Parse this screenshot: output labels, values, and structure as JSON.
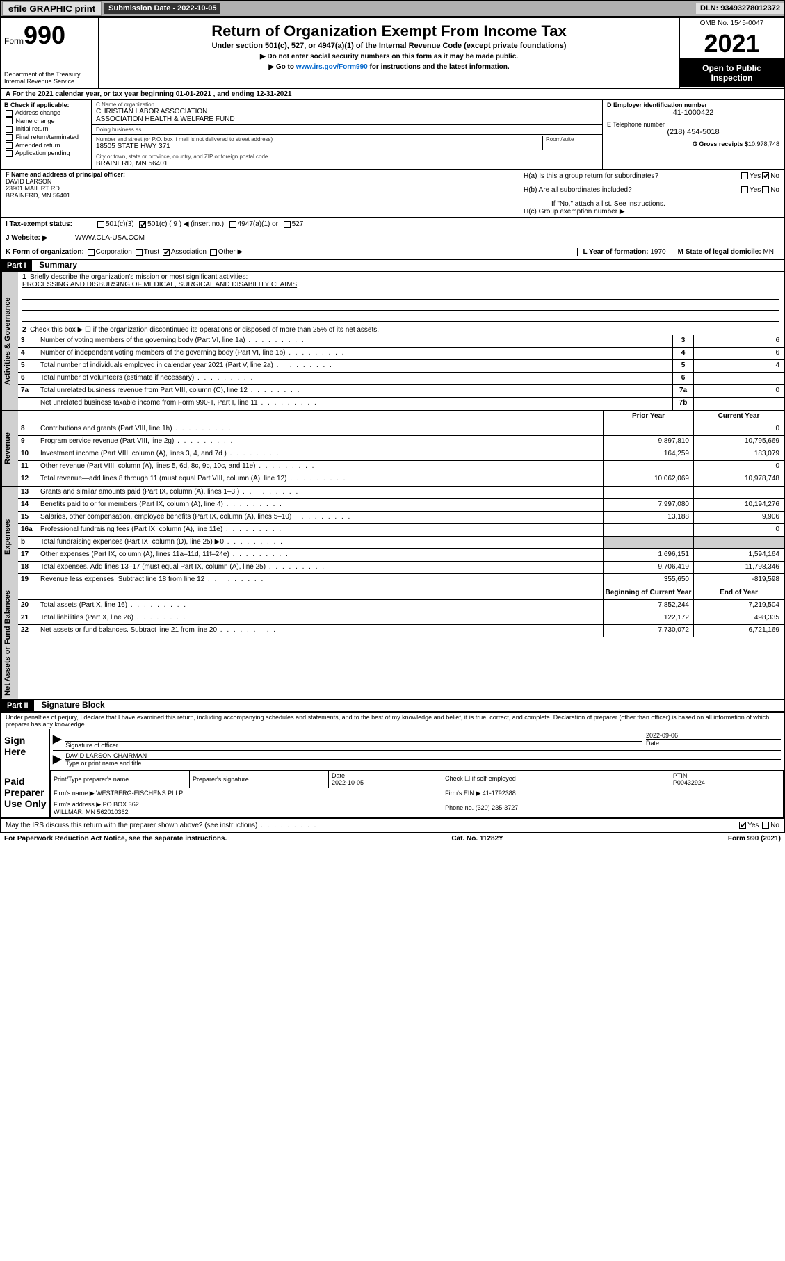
{
  "topbar": {
    "efile": "efile GRAPHIC print",
    "sub_lbl": "Submission Date - 2022-10-05",
    "dln": "DLN: 93493278012372"
  },
  "header": {
    "form_word": "Form",
    "form_num": "990",
    "dept": "Department of the Treasury\nInternal Revenue Service",
    "title": "Return of Organization Exempt From Income Tax",
    "sub": "Under section 501(c), 527, or 4947(a)(1) of the Internal Revenue Code (except private foundations)",
    "sub2a": "▶ Do not enter social security numbers on this form as it may be made public.",
    "sub2b_pre": "▶ Go to ",
    "sub2b_link": "www.irs.gov/Form990",
    "sub2b_post": " for instructions and the latest information.",
    "omb": "OMB No. 1545-0047",
    "year": "2021",
    "open": "Open to Public Inspection"
  },
  "row_a": "A For the 2021 calendar year, or tax year beginning 01-01-2021   , and ending 12-31-2021",
  "col_b": {
    "hdr": "B Check if applicable:",
    "items": [
      "Address change",
      "Name change",
      "Initial return",
      "Final return/terminated",
      "Amended return",
      "Application pending"
    ]
  },
  "col_c": {
    "name_lbl": "C Name of organization",
    "name": "CHRISTIAN LABOR ASSOCIATION\nASSOCIATION HEALTH & WELFARE FUND",
    "dba_lbl": "Doing business as",
    "dba": "",
    "addr_lbl": "Number and street (or P.O. box if mail is not delivered to street address)",
    "addr": "18505 STATE HWY 371",
    "room_lbl": "Room/suite",
    "city_lbl": "City or town, state or province, country, and ZIP or foreign postal code",
    "city": "BRAINERD, MN  56401"
  },
  "col_d": {
    "ein_lbl": "D Employer identification number",
    "ein": "41-1000422",
    "tel_lbl": "E Telephone number",
    "tel": "(218) 454-5018",
    "gross_lbl": "G Gross receipts $",
    "gross": "10,978,748"
  },
  "col_f": {
    "lbl": "F Name and address of principal officer:",
    "name": "DAVID LARSON",
    "addr1": "23901 MAIL RT RD",
    "addr2": "BRAINERD, MN  56401"
  },
  "col_h": {
    "ha": "H(a)  Is this a group return for subordinates?",
    "hb": "H(b)  Are all subordinates included?",
    "hb2": "If \"No,\" attach a list. See instructions.",
    "hc": "H(c)  Group exemption number ▶"
  },
  "row_i": {
    "lbl": "I    Tax-exempt status:",
    "opts": [
      "501(c)(3)",
      "501(c) ( 9 ) ◀ (insert no.)",
      "4947(a)(1) or",
      "527"
    ]
  },
  "row_j": {
    "lbl": "J    Website: ▶",
    "val": "WWW.CLA-USA.COM"
  },
  "row_k": {
    "lbl": "K Form of organization:",
    "opts": [
      "Corporation",
      "Trust",
      "Association",
      "Other ▶"
    ],
    "l_lbl": "L Year of formation:",
    "l_val": "1970",
    "m_lbl": "M State of legal domicile:",
    "m_val": "MN"
  },
  "part1": {
    "hdr": "Part I",
    "title": "Summary",
    "vtab1": "Activities & Governance",
    "vtab2": "Revenue",
    "vtab3": "Expenses",
    "vtab4": "Net Assets or Fund Balances",
    "l1_lbl": "Briefly describe the organization's mission or most significant activities:",
    "l1_val": "PROCESSING AND DISBURSING OF MEDICAL, SURGICAL AND DISABILITY CLAIMS",
    "l2": "Check this box ▶ ☐  if the organization discontinued its operations or disposed of more than 25% of its net assets.",
    "lines_gov": [
      {
        "n": "3",
        "t": "Number of voting members of the governing body (Part VI, line 1a)",
        "b": "3",
        "v": "6"
      },
      {
        "n": "4",
        "t": "Number of independent voting members of the governing body (Part VI, line 1b)",
        "b": "4",
        "v": "6"
      },
      {
        "n": "5",
        "t": "Total number of individuals employed in calendar year 2021 (Part V, line 2a)",
        "b": "5",
        "v": "4"
      },
      {
        "n": "6",
        "t": "Total number of volunteers (estimate if necessary)",
        "b": "6",
        "v": ""
      },
      {
        "n": "7a",
        "t": "Total unrelated business revenue from Part VIII, column (C), line 12",
        "b": "7a",
        "v": "0"
      },
      {
        "n": "",
        "t": "Net unrelated business taxable income from Form 990-T, Part I, line 11",
        "b": "7b",
        "v": ""
      }
    ],
    "col_prior": "Prior Year",
    "col_curr": "Current Year",
    "lines_rev": [
      {
        "n": "8",
        "t": "Contributions and grants (Part VIII, line 1h)",
        "p": "",
        "c": "0"
      },
      {
        "n": "9",
        "t": "Program service revenue (Part VIII, line 2g)",
        "p": "9,897,810",
        "c": "10,795,669"
      },
      {
        "n": "10",
        "t": "Investment income (Part VIII, column (A), lines 3, 4, and 7d )",
        "p": "164,259",
        "c": "183,079"
      },
      {
        "n": "11",
        "t": "Other revenue (Part VIII, column (A), lines 5, 6d, 8c, 9c, 10c, and 11e)",
        "p": "",
        "c": "0"
      },
      {
        "n": "12",
        "t": "Total revenue—add lines 8 through 11 (must equal Part VIII, column (A), line 12)",
        "p": "10,062,069",
        "c": "10,978,748"
      }
    ],
    "lines_exp": [
      {
        "n": "13",
        "t": "Grants and similar amounts paid (Part IX, column (A), lines 1–3 )",
        "p": "",
        "c": ""
      },
      {
        "n": "14",
        "t": "Benefits paid to or for members (Part IX, column (A), line 4)",
        "p": "7,997,080",
        "c": "10,194,276"
      },
      {
        "n": "15",
        "t": "Salaries, other compensation, employee benefits (Part IX, column (A), lines 5–10)",
        "p": "13,188",
        "c": "9,906"
      },
      {
        "n": "16a",
        "t": "Professional fundraising fees (Part IX, column (A), line 11e)",
        "p": "",
        "c": "0"
      },
      {
        "n": "b",
        "t": "Total fundraising expenses (Part IX, column (D), line 25) ▶0",
        "p": "grey",
        "c": "grey"
      },
      {
        "n": "17",
        "t": "Other expenses (Part IX, column (A), lines 11a–11d, 11f–24e)",
        "p": "1,696,151",
        "c": "1,594,164"
      },
      {
        "n": "18",
        "t": "Total expenses. Add lines 13–17 (must equal Part IX, column (A), line 25)",
        "p": "9,706,419",
        "c": "11,798,346"
      },
      {
        "n": "19",
        "t": "Revenue less expenses. Subtract line 18 from line 12",
        "p": "355,650",
        "c": "-819,598"
      }
    ],
    "col_begin": "Beginning of Current Year",
    "col_end": "End of Year",
    "lines_net": [
      {
        "n": "20",
        "t": "Total assets (Part X, line 16)",
        "p": "7,852,244",
        "c": "7,219,504"
      },
      {
        "n": "21",
        "t": "Total liabilities (Part X, line 26)",
        "p": "122,172",
        "c": "498,335"
      },
      {
        "n": "22",
        "t": "Net assets or fund balances. Subtract line 21 from line 20",
        "p": "7,730,072",
        "c": "6,721,169"
      }
    ]
  },
  "part2": {
    "hdr": "Part II",
    "title": "Signature Block",
    "decl": "Under penalties of perjury, I declare that I have examined this return, including accompanying schedules and statements, and to the best of my knowledge and belief, it is true, correct, and complete. Declaration of preparer (other than officer) is based on all information of which preparer has any knowledge.",
    "sign_lbl": "Sign Here",
    "sig_of": "Signature of officer",
    "sig_date": "Date",
    "sig_date_val": "2022-09-06",
    "sig_name": "DAVID LARSON  CHAIRMAN",
    "sig_name_lbl": "Type or print name and title",
    "paid_lbl": "Paid Preparer Use Only",
    "prep_name_lbl": "Print/Type preparer's name",
    "prep_sig_lbl": "Preparer's signature",
    "prep_date_lbl": "Date",
    "prep_date": "2022-10-05",
    "prep_chk": "Check ☐ if self-employed",
    "ptin_lbl": "PTIN",
    "ptin": "P00432924",
    "firm_name_lbl": "Firm's name      ▶",
    "firm_name": "WESTBERG-EISCHENS PLLP",
    "firm_ein_lbl": "Firm's EIN ▶",
    "firm_ein": "41-1792388",
    "firm_addr_lbl": "Firm's address ▶",
    "firm_addr": "PO BOX 362\nWILLMAR, MN  562010362",
    "phone_lbl": "Phone no.",
    "phone": "(320) 235-3727",
    "discuss": "May the IRS discuss this return with the preparer shown above? (see instructions)"
  },
  "footer": {
    "left": "For Paperwork Reduction Act Notice, see the separate instructions.",
    "mid": "Cat. No. 11282Y",
    "right": "Form 990 (2021)"
  }
}
